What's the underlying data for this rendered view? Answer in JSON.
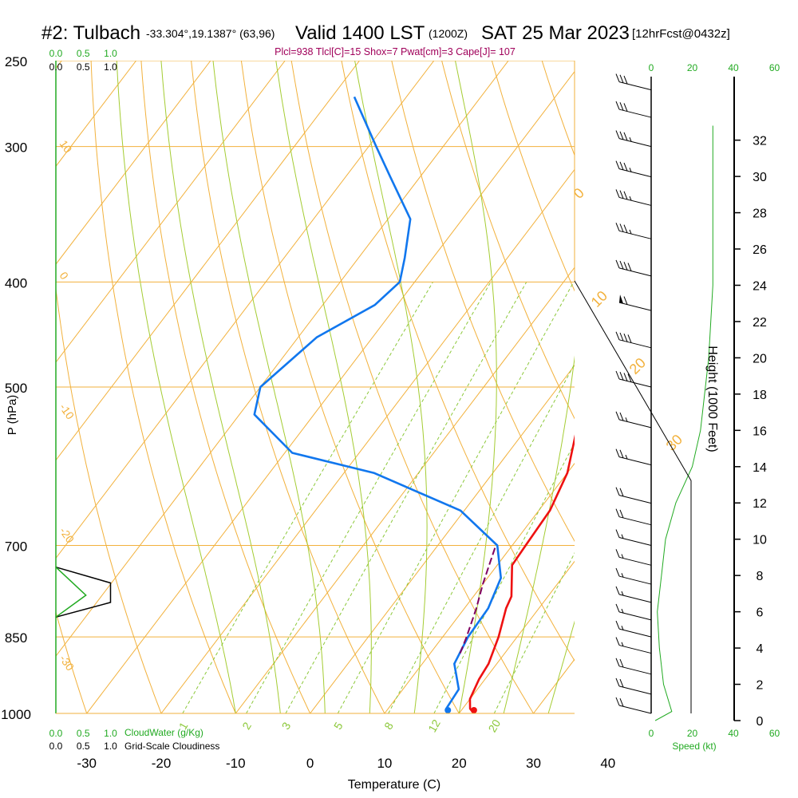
{
  "header": {
    "station": "#2: Tulbach",
    "location": "-33.304°,19.1387° (63,96)",
    "valid": "Valid 1400 LST",
    "zulu": "(1200Z)",
    "date": "SAT 25 Mar 2023",
    "forecast": "[12hrFcst@0432z]"
  },
  "stats": "Plcl=938 Tlcl[C]=15 Shox=7 Pwat[cm]=3 Cape[J]= 107",
  "chart_data": {
    "type": "line",
    "title": "#2: Tulbach Skew-T sounding",
    "xlabel": "Temperature (C)",
    "ylabel": "P (hPa)",
    "right_ylabel": "Height (1000 Feet)",
    "x_ticks": [
      -30,
      -20,
      -10,
      0,
      10,
      20,
      30,
      40
    ],
    "x_tick_labels": [
      "-30",
      "-20",
      "-10",
      "0",
      "10",
      "20",
      "30",
      "40"
    ],
    "p_ticks": [
      250,
      300,
      400,
      500,
      700,
      850,
      1000
    ],
    "p_tick_labels": [
      "250",
      "300",
      "400",
      "500",
      "700",
      "850",
      "1000"
    ],
    "height_ticks": [
      0,
      2,
      4,
      6,
      8,
      10,
      12,
      14,
      16,
      18,
      20,
      22,
      24,
      26,
      28,
      30,
      32
    ],
    "height_tick_labels": [
      "0",
      "2",
      "4",
      "6",
      "8",
      "10",
      "12",
      "14",
      "16",
      "18",
      "20",
      "22",
      "24",
      "26",
      "28",
      "30",
      "32"
    ],
    "speed_ticks": [
      0,
      20,
      40,
      60
    ],
    "speed_tick_labels": [
      "0",
      "20",
      "40",
      "60"
    ],
    "speed_label": "Speed (kt)",
    "cloud_ticks": [
      0,
      0.5,
      1.0
    ],
    "cloud_tick_labels": [
      "0.0",
      "0.5",
      "1.0"
    ],
    "cloudwater_label": "CloudWater (g/Kg)",
    "cloudiness_label": "Grid-Scale Cloudiness",
    "mixing_ratio_labels": [
      "1",
      "2",
      "3",
      "5",
      "8",
      "12",
      "20"
    ],
    "theta_labels": [
      "10",
      "0",
      "-10",
      "-20",
      "-30"
    ],
    "thetae_labels": [
      "0",
      "10",
      "20",
      "30"
    ],
    "series": [
      {
        "name": "Temperature",
        "color": "#ee1111",
        "points": [
          {
            "p": 1000,
            "t": 22.0
          },
          {
            "p": 990,
            "t": 21.0
          },
          {
            "p": 970,
            "t": 20.0
          },
          {
            "p": 930,
            "t": 19.2
          },
          {
            "p": 900,
            "t": 18.9
          },
          {
            "p": 850,
            "t": 17.5
          },
          {
            "p": 800,
            "t": 15.6
          },
          {
            "p": 780,
            "t": 15.1
          },
          {
            "p": 730,
            "t": 12.0
          },
          {
            "p": 700,
            "t": 11.8
          },
          {
            "p": 650,
            "t": 11.5
          },
          {
            "p": 600,
            "t": 10.0
          },
          {
            "p": 550,
            "t": 7.0
          },
          {
            "p": 500,
            "t": 3.5
          },
          {
            "p": 450,
            "t": -1.0
          },
          {
            "p": 400,
            "t": -6.0
          },
          {
            "p": 350,
            "t": -12.0
          },
          {
            "p": 300,
            "t": -20.0
          },
          {
            "p": 270,
            "t": -26.0
          }
        ]
      },
      {
        "name": "Dewpoint",
        "color": "#1177ee",
        "points": [
          {
            "p": 1000,
            "t": 18.5
          },
          {
            "p": 990,
            "t": 17.8
          },
          {
            "p": 950,
            "t": 17.5
          },
          {
            "p": 900,
            "t": 14.3
          },
          {
            "p": 850,
            "t": 13.4
          },
          {
            "p": 800,
            "t": 13.2
          },
          {
            "p": 750,
            "t": 11.8
          },
          {
            "p": 700,
            "t": 8.0
          },
          {
            "p": 650,
            "t": -0.5
          },
          {
            "p": 600,
            "t": -16.0
          },
          {
            "p": 575,
            "t": -29.0
          },
          {
            "p": 530,
            "t": -38.0
          },
          {
            "p": 500,
            "t": -40.0
          },
          {
            "p": 450,
            "t": -37.5
          },
          {
            "p": 420,
            "t": -33.0
          },
          {
            "p": 400,
            "t": -32.0
          },
          {
            "p": 380,
            "t": -33.8
          },
          {
            "p": 350,
            "t": -37.0
          },
          {
            "p": 320,
            "t": -44.0
          },
          {
            "p": 300,
            "t": -49.0
          },
          {
            "p": 270,
            "t": -57.0
          }
        ]
      },
      {
        "name": "Parcel",
        "color": "#800060",
        "points": [
          {
            "p": 880,
            "t": 14.0
          },
          {
            "p": 850,
            "t": 13.2
          },
          {
            "p": 800,
            "t": 11.6
          },
          {
            "p": 760,
            "t": 10.0
          },
          {
            "p": 700,
            "t": 7.8
          }
        ]
      }
    ],
    "surface_markers": [
      {
        "name": "temperature",
        "p": 1000,
        "t": 22.0,
        "color": "#ee1111"
      },
      {
        "name": "dewpoint",
        "p": 1000,
        "t": 18.5,
        "color": "#1177ee"
      }
    ],
    "wind_barbs": [
      {
        "p": 1000,
        "kt": 20
      },
      {
        "p": 960,
        "kt": 22
      },
      {
        "p": 920,
        "kt": 20
      },
      {
        "p": 880,
        "kt": 18
      },
      {
        "p": 850,
        "kt": 16
      },
      {
        "p": 820,
        "kt": 15
      },
      {
        "p": 790,
        "kt": 15
      },
      {
        "p": 760,
        "kt": 15
      },
      {
        "p": 730,
        "kt": 15
      },
      {
        "p": 700,
        "kt": 18
      },
      {
        "p": 670,
        "kt": 20
      },
      {
        "p": 640,
        "kt": 20
      },
      {
        "p": 590,
        "kt": 25
      },
      {
        "p": 545,
        "kt": 25
      },
      {
        "p": 500,
        "kt": 40
      },
      {
        "p": 460,
        "kt": 40
      },
      {
        "p": 425,
        "kt": 60
      },
      {
        "p": 395,
        "kt": 40
      },
      {
        "p": 365,
        "kt": 35
      },
      {
        "p": 340,
        "kt": 35
      },
      {
        "p": 320,
        "kt": 35
      },
      {
        "p": 300,
        "kt": 35
      },
      {
        "p": 282,
        "kt": 30
      },
      {
        "p": 266,
        "kt": 30
      }
    ],
    "wind_speed_profile": [
      {
        "h": 0,
        "kt": 2
      },
      {
        "h": 0.5,
        "kt": 10
      },
      {
        "h": 2,
        "kt": 6
      },
      {
        "h": 4,
        "kt": 4
      },
      {
        "h": 6,
        "kt": 3
      },
      {
        "h": 8,
        "kt": 5
      },
      {
        "h": 10,
        "kt": 7
      },
      {
        "h": 12,
        "kt": 12
      },
      {
        "h": 14,
        "kt": 20
      },
      {
        "h": 16,
        "kt": 24
      },
      {
        "h": 20,
        "kt": 28
      },
      {
        "h": 24,
        "kt": 30
      },
      {
        "h": 28,
        "kt": 30
      },
      {
        "h": 32.8,
        "kt": 30
      }
    ],
    "cloudiness_profile": [
      {
        "p": 733,
        "v": 0.0
      },
      {
        "p": 758,
        "v": 1.0
      },
      {
        "p": 790,
        "v": 1.0
      },
      {
        "p": 815,
        "v": 0.0
      }
    ],
    "cloudwater_profile": [
      {
        "p": 733,
        "v": 0.0
      },
      {
        "p": 778,
        "v": 0.55
      },
      {
        "p": 815,
        "v": 0.0
      }
    ]
  }
}
